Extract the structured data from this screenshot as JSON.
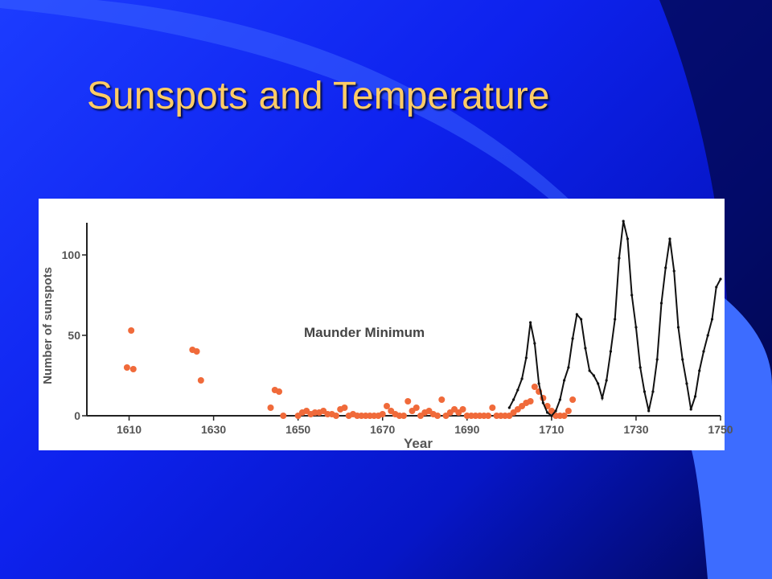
{
  "slide": {
    "title": "Sunspots and Temperature",
    "colors": {
      "title": "#ffcc66",
      "background": "#0e22ee",
      "accent_wave": "#3a6cff"
    }
  },
  "chart_data": {
    "type": "scatter",
    "xlabel": "Year",
    "ylabel": "Number of sunspots",
    "annotation": "Maunder Minimum",
    "xlim": [
      1600,
      1750
    ],
    "ylim": [
      0,
      120
    ],
    "x_ticks": [
      1610,
      1630,
      1650,
      1670,
      1690,
      1710,
      1730,
      1750
    ],
    "y_ticks": [
      0,
      50,
      100
    ],
    "colors": {
      "points": "#f06a3a",
      "line": "#111111"
    },
    "series": [
      {
        "type": "scatter",
        "points": [
          [
            1609.5,
            30
          ],
          [
            1610.5,
            53
          ],
          [
            1611,
            29
          ],
          [
            1625,
            41
          ],
          [
            1626,
            40
          ],
          [
            1627,
            22
          ],
          [
            1643.5,
            5
          ],
          [
            1644.5,
            16
          ],
          [
            1645.5,
            15
          ],
          [
            1646.5,
            0
          ],
          [
            1650,
            0
          ],
          [
            1651,
            2
          ],
          [
            1652,
            3
          ],
          [
            1653,
            1
          ],
          [
            1654,
            2
          ],
          [
            1655,
            2
          ],
          [
            1656,
            3
          ],
          [
            1657,
            1
          ],
          [
            1658,
            1
          ],
          [
            1659,
            0
          ],
          [
            1660,
            4
          ],
          [
            1661,
            5
          ],
          [
            1662,
            0
          ],
          [
            1663,
            1
          ],
          [
            1664,
            0
          ],
          [
            1665,
            0
          ],
          [
            1666,
            0
          ],
          [
            1667,
            0
          ],
          [
            1668,
            0
          ],
          [
            1669,
            0
          ],
          [
            1670,
            1
          ],
          [
            1671,
            6
          ],
          [
            1672,
            3
          ],
          [
            1673,
            1
          ],
          [
            1674,
            0
          ],
          [
            1675,
            0
          ],
          [
            1676,
            9
          ],
          [
            1677,
            3
          ],
          [
            1678,
            5
          ],
          [
            1679,
            0
          ],
          [
            1680,
            2
          ],
          [
            1681,
            3
          ],
          [
            1682,
            1
          ],
          [
            1683,
            0
          ],
          [
            1684,
            10
          ],
          [
            1685,
            0
          ],
          [
            1686,
            2
          ],
          [
            1687,
            4
          ],
          [
            1688,
            2
          ],
          [
            1689,
            4
          ],
          [
            1690,
            0
          ],
          [
            1691,
            0
          ],
          [
            1692,
            0
          ],
          [
            1693,
            0
          ],
          [
            1694,
            0
          ],
          [
            1695,
            0
          ],
          [
            1696,
            5
          ],
          [
            1697,
            0
          ],
          [
            1698,
            0
          ],
          [
            1699,
            0
          ],
          [
            1700,
            0
          ],
          [
            1701,
            2
          ],
          [
            1702,
            4
          ],
          [
            1703,
            6
          ],
          [
            1704,
            8
          ],
          [
            1705,
            9
          ],
          [
            1706,
            18
          ],
          [
            1707,
            15
          ],
          [
            1708,
            11
          ],
          [
            1709,
            6
          ],
          [
            1710,
            3
          ],
          [
            1711,
            0
          ],
          [
            1712,
            0
          ],
          [
            1713,
            0
          ],
          [
            1714,
            3
          ],
          [
            1715,
            10
          ]
        ]
      },
      {
        "type": "line",
        "points": [
          [
            1700,
            5
          ],
          [
            1701,
            10
          ],
          [
            1702,
            16
          ],
          [
            1703,
            23
          ],
          [
            1704,
            36
          ],
          [
            1705,
            58
          ],
          [
            1706,
            45
          ],
          [
            1707,
            20
          ],
          [
            1708,
            8
          ],
          [
            1709,
            2
          ],
          [
            1710,
            0
          ],
          [
            1711,
            3
          ],
          [
            1712,
            10
          ],
          [
            1713,
            22
          ],
          [
            1714,
            30
          ],
          [
            1715,
            48
          ],
          [
            1716,
            63
          ],
          [
            1717,
            60
          ],
          [
            1718,
            42
          ],
          [
            1719,
            28
          ],
          [
            1720,
            25
          ],
          [
            1721,
            20
          ],
          [
            1722,
            11
          ],
          [
            1723,
            22
          ],
          [
            1724,
            40
          ],
          [
            1725,
            60
          ],
          [
            1726,
            98
          ],
          [
            1727,
            121
          ],
          [
            1728,
            110
          ],
          [
            1729,
            75
          ],
          [
            1730,
            55
          ],
          [
            1731,
            30
          ],
          [
            1732,
            15
          ],
          [
            1733,
            3
          ],
          [
            1734,
            15
          ],
          [
            1735,
            35
          ],
          [
            1736,
            70
          ],
          [
            1737,
            92
          ],
          [
            1738,
            110
          ],
          [
            1739,
            90
          ],
          [
            1740,
            55
          ],
          [
            1741,
            35
          ],
          [
            1742,
            20
          ],
          [
            1743,
            4
          ],
          [
            1744,
            12
          ],
          [
            1745,
            28
          ],
          [
            1746,
            40
          ],
          [
            1747,
            50
          ],
          [
            1748,
            60
          ],
          [
            1749,
            80
          ],
          [
            1750,
            85
          ]
        ]
      }
    ]
  }
}
